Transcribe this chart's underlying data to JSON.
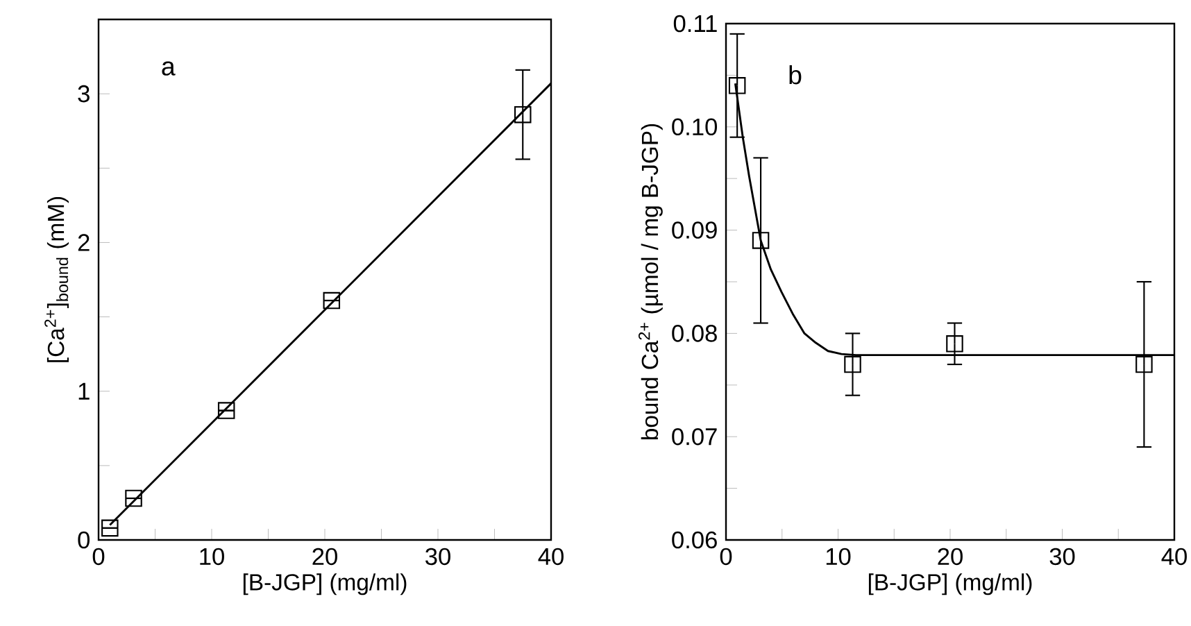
{
  "chart_data": [
    {
      "type": "scatter",
      "xlabel": "[B-JGP] (mg/ml)",
      "ylabel": "[Ca$^{2+}$]$_{bound}$  (mM)",
      "annotations": [
        "a"
      ],
      "xlim": [
        0,
        40
      ],
      "ylim": [
        0,
        3.5
      ],
      "xticks": [
        0,
        {
          "value": 5,
          "label": null
        },
        10,
        {
          "value": 15,
          "label": null
        },
        20,
        {
          "value": 25,
          "label": null
        },
        30,
        {
          "value": 35,
          "label": null
        },
        40
      ],
      "yticks": [
        0,
        {
          "value": 0.5,
          "label": null
        },
        1,
        {
          "value": 1.5,
          "label": null
        },
        2,
        {
          "value": 2.5,
          "label": null
        },
        3
      ],
      "series": [
        {
          "type": "line",
          "marker": "none",
          "color": "#000000",
          "line_style": "solid",
          "x": [
            1,
            40
          ],
          "values": [
            0.1,
            3.07
          ]
        },
        {
          "marker": "square",
          "color": "#000000",
          "x": [
            1,
            3.1,
            11.3,
            20.6,
            37.5
          ],
          "values": [
            0.08,
            0.28,
            0.87,
            1.61,
            2.86
          ],
          "errors": [
            null,
            null,
            null,
            null,
            0.3
          ]
        }
      ]
    },
    {
      "type": "scatter",
      "xlabel": "[B-JGP] (mg/ml)",
      "ylabel": "bound Ca$^{2+}$  (µmol / mg B-JGP)",
      "annotations": [
        "b"
      ],
      "xlim": [
        0,
        40
      ],
      "ylim": [
        0.06,
        0.11
      ],
      "xticks": [
        0,
        {
          "value": 5,
          "label": null
        },
        10,
        {
          "value": 15,
          "label": null
        },
        20,
        {
          "value": 25,
          "label": null
        },
        30,
        {
          "value": 35,
          "label": null
        },
        40
      ],
      "yticks": [
        {
          "value": 0.06,
          "label": "0.06"
        },
        {
          "value": 0.065,
          "label": null
        },
        {
          "value": 0.07,
          "label": "0.07"
        },
        {
          "value": 0.075,
          "label": null
        },
        {
          "value": 0.08,
          "label": "0.08"
        },
        {
          "value": 0.085,
          "label": null
        },
        {
          "value": 0.09,
          "label": "0.09"
        },
        {
          "value": 0.095,
          "label": null
        },
        {
          "value": 0.1,
          "label": "0.10"
        },
        {
          "value": 0.105,
          "label": null
        },
        {
          "value": 0.11,
          "label": "0.11"
        }
      ],
      "series": [
        {
          "marker": "square",
          "color": "#000000",
          "x": [
            1.0,
            3.1,
            11.3,
            20.4,
            37.3
          ],
          "values": [
            0.104,
            0.089,
            0.077,
            0.079,
            0.077
          ],
          "errors": [
            0.005,
            0.008,
            0.003,
            0.002,
            0.008
          ]
        },
        {
          "type": "line",
          "marker": "none",
          "color": "#000000",
          "line_style": "solid",
          "x": [
            0.83,
            1.5,
            2.07,
            3.1,
            4,
            4.96,
            6,
            7,
            8,
            9.1,
            10.3,
            11.6,
            40
          ],
          "values": [
            0.1042,
            0.099,
            0.0952,
            0.089,
            0.0862,
            0.084,
            0.0818,
            0.08,
            0.0791,
            0.0783,
            0.078,
            0.0779,
            0.0779
          ]
        }
      ]
    }
  ]
}
